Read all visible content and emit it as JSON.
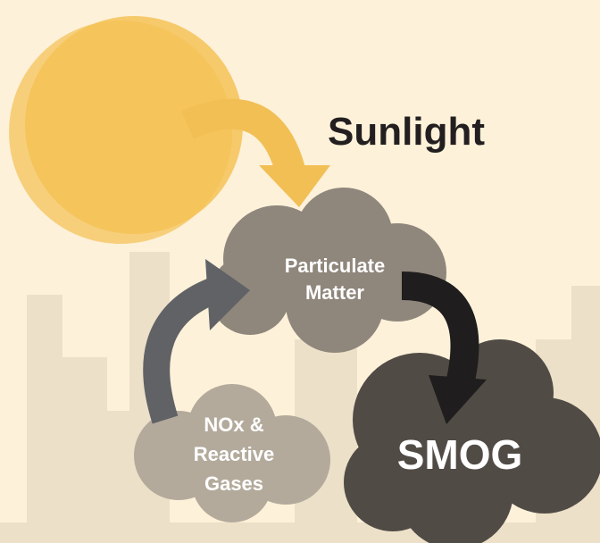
{
  "sun": {
    "label": "Sunlight"
  },
  "nodes": [
    {
      "lines": [
        "Particulate",
        "Matter"
      ]
    },
    {
      "lines": [
        "NOx &",
        "Reactive",
        "Gases"
      ]
    },
    {
      "lines": [
        "SMOG"
      ]
    }
  ]
}
